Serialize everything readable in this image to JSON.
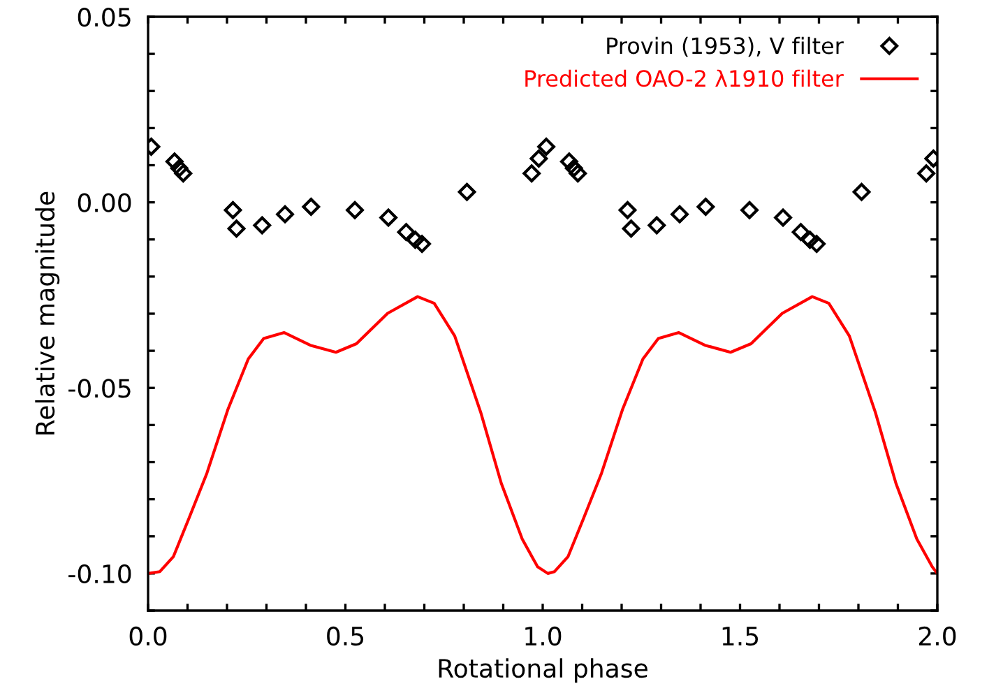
{
  "chart_data": {
    "type": "scatter",
    "xlabel": "Rotational phase",
    "ylabel": "Relative magnitude",
    "xlim": [
      0,
      2
    ],
    "ylim": [
      -0.11,
      0.05
    ],
    "xticks": [
      {
        "value": 0,
        "label": "0.0"
      },
      {
        "value": 0.1,
        "label": null
      },
      {
        "value": 0.2,
        "label": null
      },
      {
        "value": 0.3,
        "label": null
      },
      {
        "value": 0.4,
        "label": null
      },
      {
        "value": 0.5,
        "label": "0.5"
      },
      {
        "value": 0.6,
        "label": null
      },
      {
        "value": 0.7,
        "label": null
      },
      {
        "value": 0.8,
        "label": null
      },
      {
        "value": 0.9,
        "label": null
      },
      {
        "value": 1,
        "label": "1.0"
      },
      {
        "value": 1.1,
        "label": null
      },
      {
        "value": 1.2,
        "label": null
      },
      {
        "value": 1.3,
        "label": null
      },
      {
        "value": 1.4,
        "label": null
      },
      {
        "value": 1.5,
        "label": "1.5"
      },
      {
        "value": 1.6,
        "label": null
      },
      {
        "value": 1.7,
        "label": null
      },
      {
        "value": 1.8,
        "label": null
      },
      {
        "value": 1.9,
        "label": null
      },
      {
        "value": 2,
        "label": "2.0"
      }
    ],
    "yticks": [
      {
        "value": -0.11,
        "label": null
      },
      {
        "value": -0.1,
        "label": "-0.10"
      },
      {
        "value": -0.09,
        "label": null
      },
      {
        "value": -0.08,
        "label": null
      },
      {
        "value": -0.07,
        "label": null
      },
      {
        "value": -0.06,
        "label": null
      },
      {
        "value": -0.05,
        "label": "-0.05"
      },
      {
        "value": -0.04,
        "label": null
      },
      {
        "value": -0.03,
        "label": null
      },
      {
        "value": -0.02,
        "label": null
      },
      {
        "value": -0.01,
        "label": null
      },
      {
        "value": 0,
        "label": "0.00"
      },
      {
        "value": 0.01,
        "label": null
      },
      {
        "value": 0.02,
        "label": null
      },
      {
        "value": 0.03,
        "label": null
      },
      {
        "value": 0.04,
        "label": null
      },
      {
        "value": 0.05,
        "label": "0.05"
      }
    ],
    "grid": false,
    "legend": "top right",
    "series": [
      {
        "name": "Provin (1953), V filter",
        "marker": "diamond",
        "color": "#000000",
        "x": [
          0.008,
          0.067,
          0.079,
          0.089,
          0.215,
          0.224,
          0.289,
          0.347,
          0.413,
          0.524,
          0.609,
          0.654,
          0.677,
          0.694,
          0.808,
          0.972,
          0.99,
          1.009,
          1.067,
          1.079,
          1.089,
          1.215,
          1.224,
          1.289,
          1.347,
          1.413,
          1.524,
          1.609,
          1.654,
          1.677,
          1.694,
          1.808,
          1.972,
          1.99
        ],
        "values": [
          0.015,
          0.011,
          0.0092,
          0.0078,
          -0.0021,
          -0.0071,
          -0.0062,
          -0.0032,
          -0.0012,
          -0.0021,
          -0.0041,
          -0.008,
          -0.0101,
          -0.0112,
          0.0028,
          0.0078,
          0.0118,
          0.015,
          0.011,
          0.0092,
          0.0078,
          -0.0021,
          -0.0071,
          -0.0062,
          -0.0032,
          -0.0012,
          -0.0021,
          -0.0041,
          -0.008,
          -0.0101,
          -0.0112,
          0.0028,
          0.0078,
          0.0118
        ]
      },
      {
        "name": "Predicted OAO-2 λ1910 filter",
        "type": "line",
        "marker": "none",
        "line_style": "solid",
        "color": "#ff0000",
        "x": [
          0,
          0.03,
          0.064,
          0.103,
          0.149,
          0.202,
          0.254,
          0.293,
          0.345,
          0.411,
          0.476,
          0.528,
          0.607,
          0.683,
          0.725,
          0.777,
          0.843,
          0.895,
          0.948,
          0.987,
          1.013,
          1.03,
          1.064,
          1.103,
          1.149,
          1.202,
          1.254,
          1.293,
          1.345,
          1.411,
          1.476,
          1.528,
          1.607,
          1.683,
          1.725,
          1.777,
          1.843,
          1.895,
          1.948,
          1.987,
          2
        ],
        "values": [
          -0.1,
          -0.0995,
          -0.0955,
          -0.0853,
          -0.073,
          -0.0559,
          -0.0422,
          -0.0367,
          -0.0351,
          -0.0385,
          -0.0404,
          -0.0381,
          -0.0299,
          -0.0254,
          -0.0272,
          -0.036,
          -0.0566,
          -0.0757,
          -0.0907,
          -0.0982,
          -0.1,
          -0.0995,
          -0.0955,
          -0.0853,
          -0.073,
          -0.0559,
          -0.0422,
          -0.0367,
          -0.0351,
          -0.0385,
          -0.0404,
          -0.0381,
          -0.0299,
          -0.0254,
          -0.0272,
          -0.036,
          -0.0566,
          -0.0757,
          -0.0907,
          -0.0982,
          -0.1
        ]
      }
    ]
  }
}
